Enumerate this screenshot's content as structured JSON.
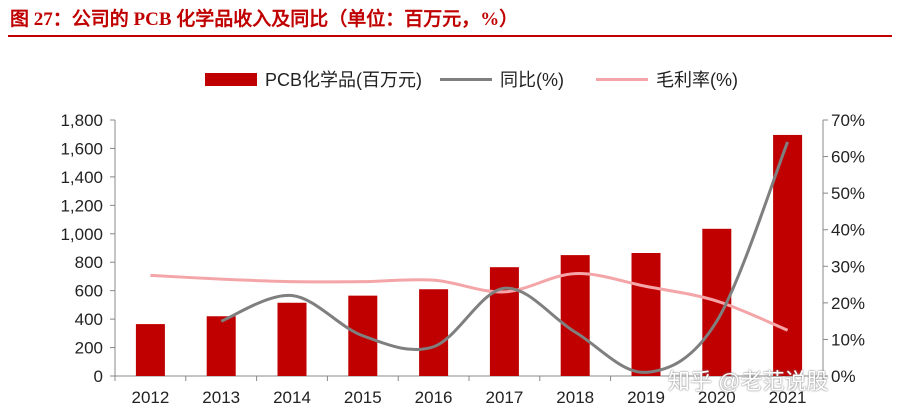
{
  "header": {
    "title": "图 27：公司的 PCB 化学品收入及同比（单位：百万元，%）"
  },
  "colors": {
    "bar": "#c00000",
    "yoy_line": "#7f7f7f",
    "margin_line": "#f4a5a8",
    "title": "#c00000"
  },
  "chart_data": {
    "type": "bar",
    "title": "",
    "categories": [
      "2012",
      "2013",
      "2014",
      "2015",
      "2016",
      "2017",
      "2018",
      "2019",
      "2020",
      "2021"
    ],
    "series": [
      {
        "name": "PCB化学品(百万元)",
        "type": "bar",
        "axis": "left",
        "values": [
          365,
          420,
          515,
          565,
          610,
          765,
          850,
          865,
          1035,
          1695
        ]
      },
      {
        "name": "同比(%)",
        "type": "line",
        "axis": "right",
        "values": [
          null,
          15,
          22,
          11,
          8,
          24,
          12,
          1,
          15,
          64
        ]
      },
      {
        "name": "毛利率(%)",
        "type": "line",
        "axis": "right",
        "values": [
          27.5,
          26.5,
          25.8,
          25.8,
          26.2,
          23,
          28,
          24.5,
          20.5,
          12.5
        ]
      }
    ],
    "y_left": {
      "ylim": [
        0,
        1800
      ],
      "ticks": [
        "0",
        "200",
        "400",
        "600",
        "800",
        "1,000",
        "1,200",
        "1,400",
        "1,600",
        "1,800"
      ]
    },
    "y_right": {
      "ylim": [
        0,
        70
      ],
      "ticks": [
        "0%",
        "10%",
        "20%",
        "30%",
        "40%",
        "50%",
        "60%",
        "70%"
      ]
    },
    "legend_position": "top-center",
    "grid": false
  },
  "watermark": {
    "text": "知乎 @老范说股"
  }
}
